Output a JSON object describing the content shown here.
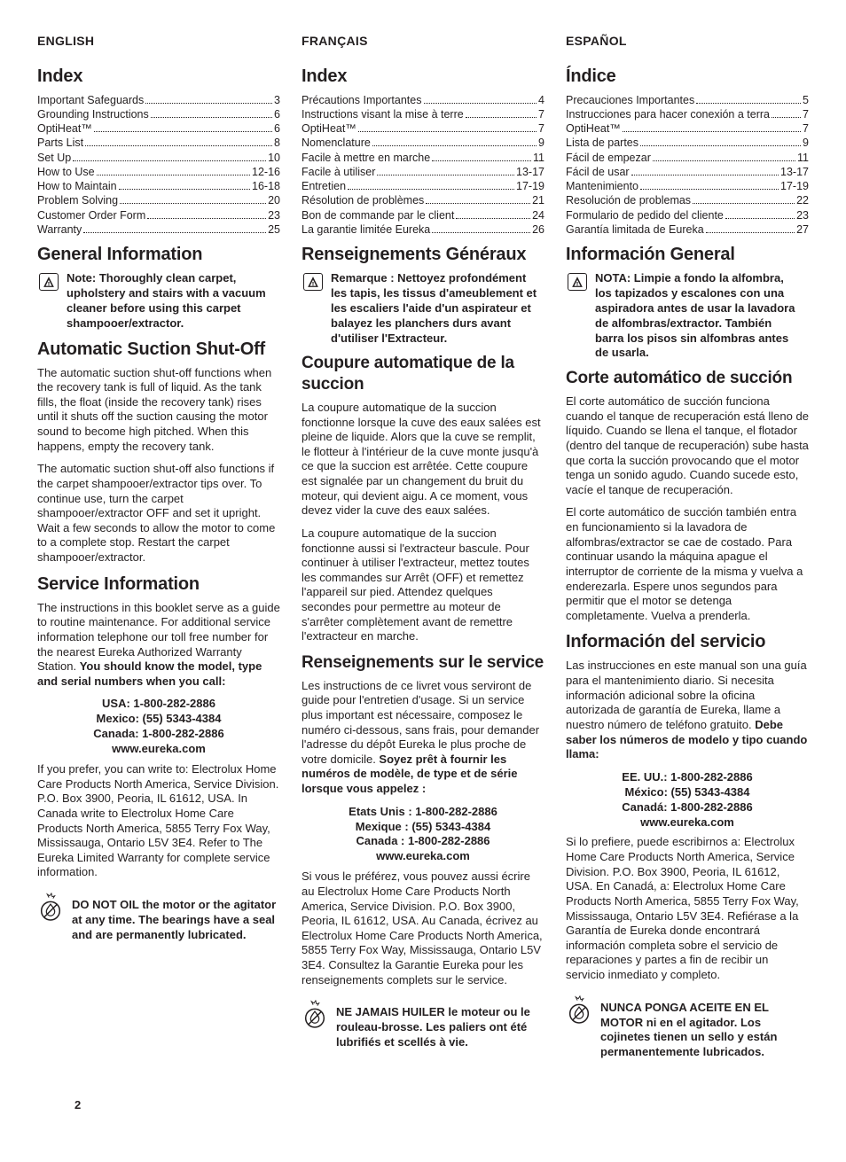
{
  "page_number": "2",
  "columns": {
    "en": {
      "lang": "ENGLISH",
      "index_title": "Index",
      "toc": [
        {
          "label": "Important Safeguards",
          "page": "3"
        },
        {
          "label": "Grounding Instructions",
          "page": "6"
        },
        {
          "label": "OptiHeat™",
          "page": "6"
        },
        {
          "label": "Parts List",
          "page": "8"
        },
        {
          "label": "Set Up",
          "page": "10"
        },
        {
          "label": "How to Use",
          "page": "12-16"
        },
        {
          "label": "How to Maintain",
          "page": "16-18"
        },
        {
          "label": "Problem Solving",
          "page": "20"
        },
        {
          "label": "Customer Order Form",
          "page": "23"
        },
        {
          "label": "Warranty",
          "page": "25"
        }
      ],
      "gen_info_title": "General Information",
      "note": "Note: Thoroughly clean carpet, upholstery and stairs with a vacuum cleaner before using this carpet shampooer/extractor.",
      "auto_title": "Automatic Suction Shut-Off",
      "auto_p1": "The automatic suction shut-off functions when the recovery tank is full of liquid. As the tank fills, the float (inside the recovery tank) rises until it shuts off the suction causing the motor sound to become high pitched. When this happens, empty the recovery tank.",
      "auto_p2": "The automatic suction shut-off also functions if the carpet shampooer/extractor tips over. To continue use, turn the carpet shampooer/extractor OFF and set it upright. Wait a few seconds to allow the motor to come to a complete stop. Restart the carpet shampooer/extractor.",
      "svc_title": "Service Information",
      "svc_p1a": "The instructions in this booklet serve as a guide to routine maintenance. For additional service information telephone our toll free number for the nearest Eureka Authorized Warranty Station. ",
      "svc_p1b": "You should know the model, type and serial numbers when you call:",
      "phones": {
        "l1": "USA: 1-800-282-2886",
        "l2": "Mexico: (55) 5343-4384",
        "l3": "Canada: 1-800-282-2886",
        "l4": "www.eureka.com"
      },
      "svc_p2": "If you prefer, you can write to: Electrolux Home Care Products North America, Service Division. P.O. Box 3900, Peoria, IL 61612, USA. In Canada write to Electrolux Home Care Products North America, 5855 Terry Fox Way, Mississauga, Ontario L5V 3E4. Refer to The Eureka Limited Warranty for complete service information.",
      "oil": "DO NOT OIL the motor or the agitator at any time. The bearings have a seal and are permanently lubricated."
    },
    "fr": {
      "lang": "FRANÇAIS",
      "index_title": "Index",
      "toc": [
        {
          "label": "Précautions Importantes",
          "page": "4"
        },
        {
          "label": "Instructions visant la mise à terre",
          "page": "7"
        },
        {
          "label": "OptiHeat™",
          "page": "7"
        },
        {
          "label": "Nomenclature",
          "page": "9"
        },
        {
          "label": "Facile à mettre en marche",
          "page": "11"
        },
        {
          "label": "Facile à utiliser",
          "page": "13-17"
        },
        {
          "label": "Entretien",
          "page": "17-19"
        },
        {
          "label": "Résolution de problèmes",
          "page": "21"
        },
        {
          "label": "Bon de commande par le client",
          "page": "24"
        },
        {
          "label": "La garantie limitée Eureka",
          "page": "26"
        }
      ],
      "gen_info_title": "Renseignements Généraux",
      "note": "Remarque : Nettoyez profondément les tapis, les tissus d'ameublement et les escaliers l'aide d'un aspirateur et balayez les planchers durs avant d'utiliser l'Extracteur.",
      "auto_title": "Coupure automatique de la succion",
      "auto_p1": "La coupure automatique de la succion fonctionne lorsque la cuve des eaux salées est pleine de  liquide. Alors que la cuve se remplit, le flotteur à l'intérieur de la cuve monte jusqu'à ce que la succion est arrêtée. Cette coupure est signalée par un changement du bruit du moteur, qui devient aigu. A ce moment, vous devez vider la cuve des eaux salées.",
      "auto_p2": "La coupure automatique de la succion fonctionne aussi si l'extracteur bascule. Pour continuer à utiliser l'extracteur, mettez toutes les commandes sur Arrêt (OFF) et remettez l'appareil sur pied. Attendez quelques secondes pour permettre au moteur de s'arrêter complètement avant de remettre l'extracteur en marche.",
      "svc_title": "Renseignements sur le service",
      "svc_p1a": "Les instructions de ce livret vous serviront de guide pour l'entretien d'usage. Si un service plus important est nécessaire, composez le numéro ci-dessous, sans frais, pour demander l'adresse du dépôt Eureka le plus proche de votre domicile. ",
      "svc_p1b": "Soyez prêt à fournir les numéros de modèle, de type et de série lorsque vous appelez :",
      "phones": {
        "l1": "Etats Unis : 1-800-282-2886",
        "l2": "Mexique : (55) 5343-4384",
        "l3": "Canada : 1-800-282-2886",
        "l4": "www.eureka.com"
      },
      "svc_p2": "Si vous le préférez, vous pouvez aussi écrire au Electrolux Home Care Products North America, Service Division. P.O. Box 3900, Peoria, IL 61612, USA. Au Canada, écrivez au Electrolux Home Care Products North America, 5855 Terry Fox Way, Mississauga, Ontario L5V 3E4. Consultez la Garantie Eureka pour les renseignements complets sur le service.",
      "oil": "NE JAMAIS HUILER le moteur ou le rouleau-brosse. Les paliers ont été lubrifiés et scellés à vie."
    },
    "es": {
      "lang": "ESPAÑOL",
      "index_title": "Índice",
      "toc": [
        {
          "label": "Precauciones Importantes",
          "page": "5"
        },
        {
          "label": "Instrucciones para hacer conexión a terra",
          "page": "7"
        },
        {
          "label": "OptiHeat™",
          "page": "7"
        },
        {
          "label": "Lista de partes",
          "page": "9"
        },
        {
          "label": "Fácil de empezar",
          "page": "11"
        },
        {
          "label": "Fácil de usar",
          "page": "13-17"
        },
        {
          "label": "Mantenimiento",
          "page": "17-19"
        },
        {
          "label": "Resolución de problemas",
          "page": "22"
        },
        {
          "label": "Formulario de pedido del cliente",
          "page": "23"
        },
        {
          "label": "Garantía limitada de Eureka",
          "page": "27"
        }
      ],
      "gen_info_title": "Información General",
      "note": "NOTA: Limpie a fondo la alfombra, los tapizados y escalones con una aspiradora antes de usar la lavadora de alfombras/extractor. También barra los pisos sin alfombras antes de usarla.",
      "auto_title": "Corte automático de succión",
      "auto_p1": "El corte automático de succión funciona cuando el tanque de recuperación está lleno de líquido. Cuando se llena el tanque, el flotador (dentro del tanque de recuperación) sube hasta que corta la succión provocando que el motor tenga un sonido agudo. Cuando sucede esto, vacíe el tanque de recuperación.",
      "auto_p2": "El corte automático de succión también entra en funcionamiento si la lavadora de alfombras/extractor se cae de costado. Para continuar usando la máquina apague el interruptor de corriente de la misma y vuelva a enderezarla. Espere unos segundos para permitir que el motor se detenga completamente. Vuelva a prenderla.",
      "svc_title": "Información del servicio",
      "svc_p1a": "Las instrucciones en este manual son una guía para el mantenimiento diario. Si necesita información adicional sobre la oficina autorizada de garantía de Eureka, llame a nuestro número de teléfono gratuito. ",
      "svc_p1b": "Debe saber los números de modelo y tipo cuando llama:",
      "phones": {
        "l1": "EE. UU.: 1-800-282-2886",
        "l2": "México: (55) 5343-4384",
        "l3": "Canadá: 1-800-282-2886",
        "l4": "www.eureka.com"
      },
      "svc_p2": "Si lo prefiere, puede escribirnos a: Electrolux Home Care Products North America, Service Division. P.O. Box 3900, Peoria, IL 61612, USA. En Canadá, a: Electrolux Home Care Products North America, 5855 Terry Fox Way, Mississauga, Ontario L5V 3E4. Refiérase a la Garantía de Eureka donde encontrará información completa sobre el servicio de reparaciones y partes a fin de recibir un servicio inmediato y completo.",
      "oil": "NUNCA PONGA ACEITE EN EL MOTOR ni en el agitador. Los cojinetes tienen un sello y están permanentemente lubricados."
    }
  }
}
